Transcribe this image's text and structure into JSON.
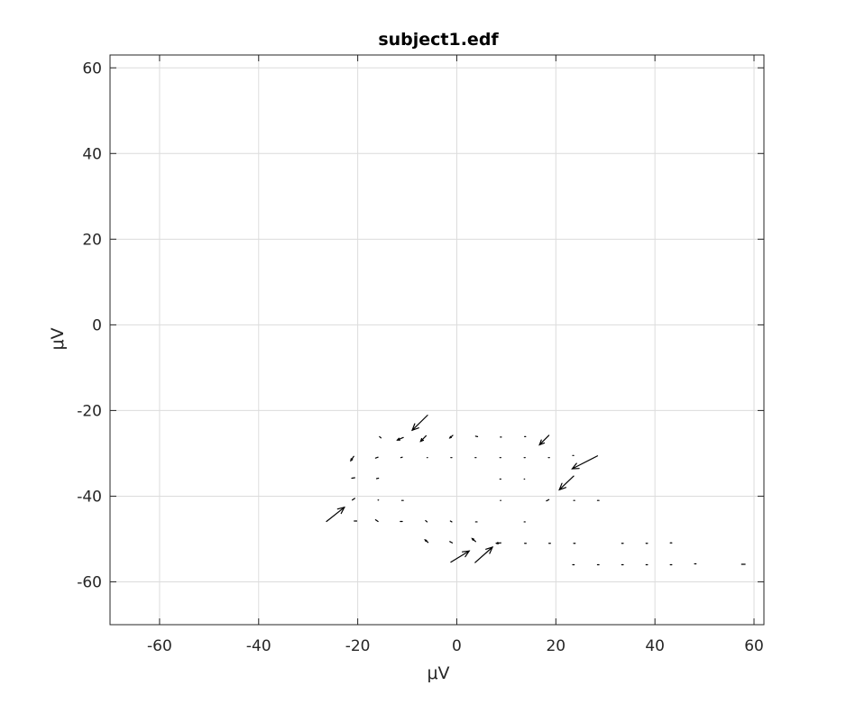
{
  "chart_data": {
    "type": "quiver",
    "title": "subject1.edf",
    "xlabel": "μV",
    "ylabel": "μV",
    "xlim": [
      -70,
      62
    ],
    "ylim": [
      -70,
      63
    ],
    "xticks": [
      -60,
      -40,
      -20,
      0,
      20,
      40,
      60
    ],
    "yticks": [
      60,
      40,
      20,
      0,
      -20,
      -40,
      -60
    ],
    "grid": true,
    "colors": {
      "arrow": "#000000",
      "grid": "#dcdcdc",
      "axis": "#262626"
    },
    "vectors": [
      {
        "x": -5.9,
        "y": -21.1,
        "u": -3.1,
        "v": -3.5
      },
      {
        "x": -10.8,
        "y": -26.3,
        "u": -1.2,
        "v": -0.6
      },
      {
        "x": -6.2,
        "y": -25.9,
        "u": -1.1,
        "v": -1.3
      },
      {
        "x": -15.6,
        "y": -26.1,
        "u": 0.3,
        "v": -0.3
      },
      {
        "x": -0.8,
        "y": -25.8,
        "u": -0.6,
        "v": -0.6
      },
      {
        "x": 3.8,
        "y": -26.0,
        "u": 0.4,
        "v": -0.1
      },
      {
        "x": 8.8,
        "y": -26.2,
        "u": 0.2,
        "v": 0
      },
      {
        "x": 13.7,
        "y": -26.1,
        "u": 0.2,
        "v": 0
      },
      {
        "x": 18.6,
        "y": -25.8,
        "u": -1.9,
        "v": -2.2
      },
      {
        "x": 23.4,
        "y": -30.5,
        "u": 0.2,
        "v": 0
      },
      {
        "x": 28.4,
        "y": -30.6,
        "u": -5.1,
        "v": -3.0
      },
      {
        "x": -20.8,
        "y": -30.7,
        "u": -0.6,
        "v": -1.0
      },
      {
        "x": -15.9,
        "y": -30.9,
        "u": -0.5,
        "v": -0.2
      },
      {
        "x": -11.0,
        "y": -30.9,
        "u": -0.3,
        "v": -0.1
      },
      {
        "x": -6.0,
        "y": -31.0,
        "u": 0.1,
        "v": 0
      },
      {
        "x": -1.0,
        "y": -31.0,
        "u": -0.2,
        "v": 0
      },
      {
        "x": 3.9,
        "y": -31.0,
        "u": -0.2,
        "v": 0
      },
      {
        "x": 8.9,
        "y": -31.0,
        "u": -0.2,
        "v": 0
      },
      {
        "x": 13.8,
        "y": -31.0,
        "u": -0.2,
        "v": 0
      },
      {
        "x": 18.7,
        "y": -31.0,
        "u": -0.2,
        "v": 0
      },
      {
        "x": 23.6,
        "y": -35.3,
        "u": -2.9,
        "v": -3.2
      },
      {
        "x": -20.6,
        "y": -35.7,
        "u": -0.6,
        "v": -0.1
      },
      {
        "x": -15.8,
        "y": -35.8,
        "u": -0.4,
        "v": -0.1
      },
      {
        "x": 8.9,
        "y": -36.0,
        "u": -0.2,
        "v": 0
      },
      {
        "x": 13.7,
        "y": -36.0,
        "u": -0.1,
        "v": 0
      },
      {
        "x": -20.6,
        "y": -40.5,
        "u": -0.5,
        "v": -0.4
      },
      {
        "x": -15.9,
        "y": -40.9,
        "u": 0.1,
        "v": 0
      },
      {
        "x": -11.1,
        "y": -41.0,
        "u": 0.3,
        "v": 0
      },
      {
        "x": 8.8,
        "y": -41.0,
        "u": 0.1,
        "v": 0
      },
      {
        "x": 18.6,
        "y": -40.8,
        "u": -0.5,
        "v": -0.3
      },
      {
        "x": 23.6,
        "y": -41.0,
        "u": 0.2,
        "v": 0
      },
      {
        "x": 28.4,
        "y": -41.0,
        "u": 0.3,
        "v": 0
      },
      {
        "x": -26.3,
        "y": -45.9,
        "u": 3.6,
        "v": 3.3
      },
      {
        "x": -20.7,
        "y": -45.8,
        "u": 0.5,
        "v": 0
      },
      {
        "x": -15.9,
        "y": -45.9,
        "u": -0.5,
        "v": 0.4
      },
      {
        "x": -11.0,
        "y": -45.9,
        "u": -0.4,
        "v": 0
      },
      {
        "x": -6.0,
        "y": -46.0,
        "u": -0.3,
        "v": 0.3
      },
      {
        "x": -1.0,
        "y": -46.0,
        "u": -0.3,
        "v": 0.2
      },
      {
        "x": 3.8,
        "y": -46.0,
        "u": 0.3,
        "v": 0
      },
      {
        "x": 13.6,
        "y": -46.0,
        "u": 0.2,
        "v": 0
      },
      {
        "x": -5.8,
        "y": -50.8,
        "u": -0.6,
        "v": 0.6
      },
      {
        "x": -0.9,
        "y": -50.9,
        "u": -0.5,
        "v": 0.3
      },
      {
        "x": 3.8,
        "y": -50.6,
        "u": -0.7,
        "v": 0.7
      },
      {
        "x": 8.9,
        "y": -50.9,
        "u": -0.9,
        "v": -0.1
      },
      {
        "x": 13.7,
        "y": -51.0,
        "u": 0.3,
        "v": 0
      },
      {
        "x": 18.6,
        "y": -51.0,
        "u": 0.3,
        "v": 0
      },
      {
        "x": 23.6,
        "y": -51.0,
        "u": 0.3,
        "v": 0
      },
      {
        "x": 33.3,
        "y": -51.0,
        "u": 0.3,
        "v": 0
      },
      {
        "x": 38.2,
        "y": -51.0,
        "u": 0.3,
        "v": 0
      },
      {
        "x": 43.1,
        "y": -50.9,
        "u": 0.3,
        "v": 0
      },
      {
        "x": -1.2,
        "y": -55.4,
        "u": 3.7,
        "v": 2.6
      },
      {
        "x": 3.7,
        "y": -55.5,
        "u": 3.5,
        "v": 3.6
      },
      {
        "x": 23.4,
        "y": -56.0,
        "u": 0.3,
        "v": 0
      },
      {
        "x": 28.4,
        "y": -56.0,
        "u": 0.3,
        "v": 0
      },
      {
        "x": 33.3,
        "y": -56.0,
        "u": 0.3,
        "v": 0
      },
      {
        "x": 38.2,
        "y": -56.0,
        "u": 0.3,
        "v": 0
      },
      {
        "x": 43.1,
        "y": -56.0,
        "u": 0.3,
        "v": 0
      },
      {
        "x": 48.0,
        "y": -55.8,
        "u": 0.3,
        "v": 0
      },
      {
        "x": 57.5,
        "y": -55.9,
        "u": 0.7,
        "v": 0
      }
    ]
  }
}
